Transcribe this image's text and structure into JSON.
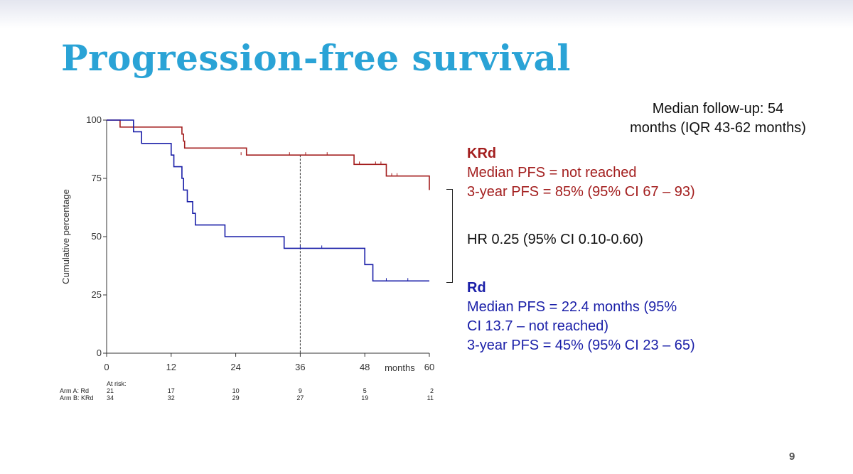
{
  "slide": {
    "title": "Progression-free survival",
    "page_number": "9"
  },
  "followup": {
    "line1": "Median follow-up: 54",
    "line2": "months (IQR 43-62 months)"
  },
  "arms": {
    "krd": {
      "name": "KRd",
      "median": "Median PFS = not reached",
      "three_year": "3-year PFS = 85% (95% CI 67 – 93)"
    },
    "rd": {
      "name": "Rd",
      "median_line1": "Median PFS = 22.4 months (95%",
      "median_line2": "CI 13.7 – not reached)",
      "three_year": "3-year PFS = 45% (95% CI 23 – 65)"
    },
    "hr": "HR 0.25 (95% CI 0.10-0.60)"
  },
  "colors": {
    "title": "#2aa3d6",
    "krd": "#a31e1e",
    "rd": "#1a1fa8"
  },
  "chart_data": {
    "type": "line",
    "subtype": "kaplan-meier",
    "ylabel": "Cumulative percentage",
    "xlabel": "months",
    "xlim": [
      0,
      60
    ],
    "ylim": [
      0,
      100
    ],
    "x_ticks": [
      0,
      12,
      24,
      36,
      48,
      60
    ],
    "y_ticks": [
      0,
      25,
      50,
      75,
      100
    ],
    "reference_line_x": 36,
    "series": [
      {
        "key": "krd",
        "color": "#a31e1e",
        "steps": [
          [
            0,
            100
          ],
          [
            2.5,
            97
          ],
          [
            14,
            94
          ],
          [
            14.3,
            91
          ],
          [
            14.5,
            88
          ],
          [
            26,
            85
          ],
          [
            46,
            81
          ],
          [
            52,
            76
          ],
          [
            60,
            70
          ]
        ],
        "censor_marks": [
          [
            25,
            85
          ],
          [
            34,
            85
          ],
          [
            37,
            85
          ],
          [
            41,
            85
          ],
          [
            47,
            81
          ],
          [
            50,
            81
          ],
          [
            51,
            81
          ],
          [
            53,
            76
          ],
          [
            54,
            76
          ]
        ]
      },
      {
        "key": "rd",
        "color": "#1a1fa8",
        "steps": [
          [
            0,
            100
          ],
          [
            5,
            95
          ],
          [
            6.5,
            90
          ],
          [
            12,
            85
          ],
          [
            12.5,
            80
          ],
          [
            14,
            75
          ],
          [
            14.3,
            70
          ],
          [
            15,
            65
          ],
          [
            16,
            60
          ],
          [
            16.5,
            55
          ],
          [
            22,
            50
          ],
          [
            33,
            45
          ],
          [
            48,
            38
          ],
          [
            49.5,
            31
          ],
          [
            60,
            31
          ]
        ],
        "censor_marks": [
          [
            36,
            45
          ],
          [
            40,
            45
          ],
          [
            52,
            31
          ],
          [
            56,
            31
          ]
        ]
      }
    ],
    "at_risk": {
      "label": "At risk:",
      "rows": [
        {
          "label": "Arm A: Rd",
          "values": [
            "21",
            "17",
            "10",
            "9",
            "5",
            "2"
          ]
        },
        {
          "label": "Arm B: KRd",
          "values": [
            "34",
            "32",
            "29",
            "27",
            "19",
            "11"
          ]
        }
      ]
    }
  }
}
